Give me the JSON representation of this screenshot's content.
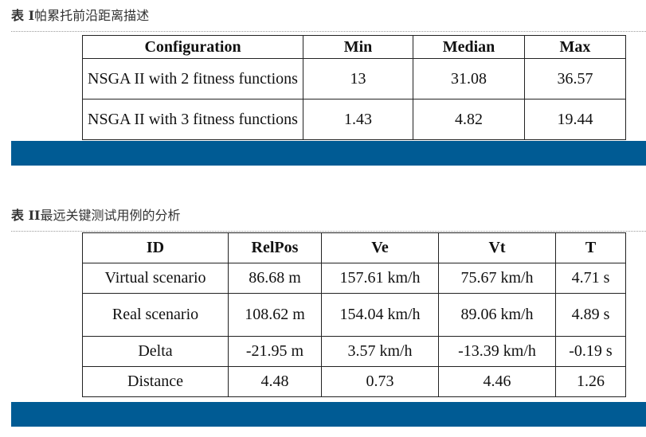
{
  "table1": {
    "caption_label": "表 I",
    "caption_text": "帕累托前沿距离描述",
    "headers": [
      "Configuration",
      "Min",
      "Median",
      "Max"
    ],
    "rows": [
      [
        "NSGA II with 2 fitness functions",
        "13",
        "31.08",
        "36.57"
      ],
      [
        "NSGA II with 3 fitness functions",
        "1.43",
        "4.82",
        "19.44"
      ]
    ]
  },
  "table2": {
    "caption_label": "表 II",
    "caption_text": "最远关键测试用例的分析",
    "headers": [
      "ID",
      "RelPos",
      "Ve",
      "Vt",
      "T"
    ],
    "rows": [
      [
        "Virtual scenario",
        "86.68 m",
        "157.61 km/h",
        "75.67 km/h",
        "4.71 s"
      ],
      [
        "Real scenario",
        "108.62 m",
        "154.04 km/h",
        "89.06 km/h",
        "4.89 s"
      ],
      [
        "Delta",
        "-21.95 m",
        "3.57 km/h",
        "-13.39 km/h",
        "-0.19 s"
      ],
      [
        "Distance",
        "4.48",
        "0.73",
        "4.46",
        "1.26"
      ]
    ]
  },
  "colors": {
    "accent_bar": "#005b94",
    "caption_text": "#333333"
  }
}
